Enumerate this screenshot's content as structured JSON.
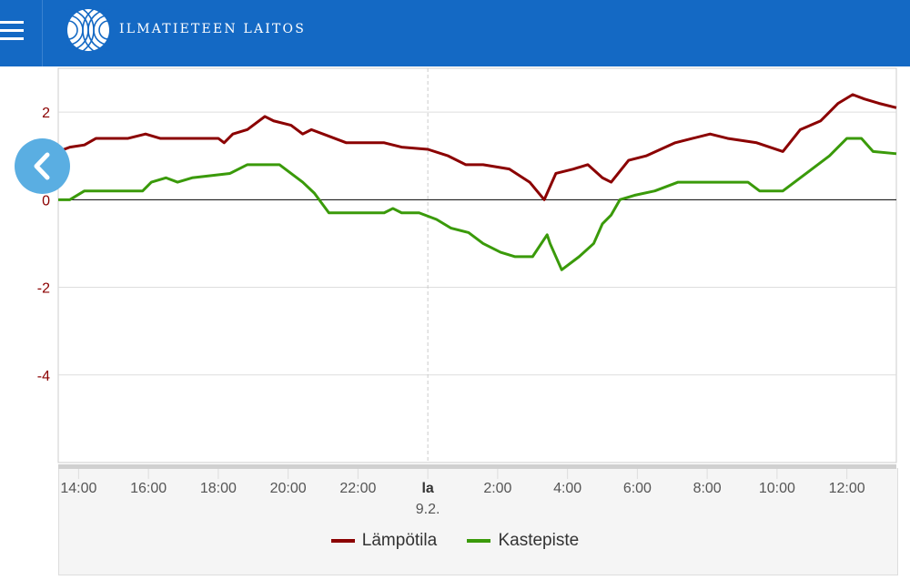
{
  "header": {
    "brand": "ILMATIETEEN LAITOS",
    "menu_icon": "hamburger-icon",
    "logo": "fmi-logo"
  },
  "back_button": {
    "icon": "chevron-left-icon",
    "color": "#5aaee2"
  },
  "colors": {
    "header": "#1469c4",
    "temperature": "#8b0000",
    "dewpoint": "#3a9a0a",
    "axis_label": "#8b0000"
  },
  "chart_data": {
    "type": "line",
    "xlim": [
      "8.2. 13:25",
      "9.2. 13:25"
    ],
    "ylim": [
      -6,
      3
    ],
    "grid": true,
    "legend_placement": "bottom",
    "x_ticks": [
      "14:00",
      "16:00",
      "18:00",
      "20:00",
      "22:00",
      "la",
      "2:00",
      "4:00",
      "6:00",
      "8:00",
      "10:00",
      "12:00"
    ],
    "x_tick_times": [
      "14:00",
      "16:00",
      "18:00",
      "20:00",
      "22:00",
      "0:00",
      "2:00",
      "4:00",
      "6:00",
      "8:00",
      "10:00",
      "12:00"
    ],
    "day_label": "9.2.",
    "y_ticks": [
      2,
      0,
      -2,
      -4
    ],
    "y_tick_labels": [
      "2",
      "0",
      "-2",
      "-4"
    ],
    "series": [
      {
        "name": "Lämpötila",
        "color": "#8b0000",
        "points": [
          [
            "13:25",
            1.1
          ],
          [
            "13:45",
            1.2
          ],
          [
            "14:10",
            1.25
          ],
          [
            "14:30",
            1.4
          ],
          [
            "14:55",
            1.4
          ],
          [
            "15:25",
            1.4
          ],
          [
            "15:55",
            1.5
          ],
          [
            "16:20",
            1.4
          ],
          [
            "18:00",
            1.4
          ],
          [
            "18:10",
            1.3
          ],
          [
            "18:25",
            1.5
          ],
          [
            "18:50",
            1.6
          ],
          [
            "19:20",
            1.9
          ],
          [
            "19:35",
            1.8
          ],
          [
            "20:05",
            1.7
          ],
          [
            "20:25",
            1.5
          ],
          [
            "20:40",
            1.6
          ],
          [
            "21:10",
            1.45
          ],
          [
            "21:40",
            1.3
          ],
          [
            "22:05",
            1.3
          ],
          [
            "22:45",
            1.3
          ],
          [
            "23:15",
            1.2
          ],
          [
            "0:00",
            1.15
          ],
          [
            "0:35",
            1.0
          ],
          [
            "1:05",
            0.8
          ],
          [
            "1:35",
            0.8
          ],
          [
            "2:20",
            0.7
          ],
          [
            "2:55",
            0.4
          ],
          [
            "3:20",
            0.0
          ],
          [
            "3:40",
            0.6
          ],
          [
            "4:10",
            0.7
          ],
          [
            "4:35",
            0.8
          ],
          [
            "5:00",
            0.5
          ],
          [
            "5:15",
            0.4
          ],
          [
            "5:45",
            0.9
          ],
          [
            "6:15",
            1.0
          ],
          [
            "7:05",
            1.3
          ],
          [
            "7:35",
            1.4
          ],
          [
            "8:05",
            1.5
          ],
          [
            "8:35",
            1.4
          ],
          [
            "9:25",
            1.3
          ],
          [
            "10:10",
            1.1
          ],
          [
            "10:40",
            1.6
          ],
          [
            "11:15",
            1.8
          ],
          [
            "11:45",
            2.2
          ],
          [
            "12:10",
            2.4
          ],
          [
            "12:30",
            2.3
          ],
          [
            "12:55",
            2.2
          ],
          [
            "13:25",
            2.1
          ]
        ]
      },
      {
        "name": "Kastepiste",
        "color": "#3a9a0a",
        "points": [
          [
            "13:25",
            0.0
          ],
          [
            "13:45",
            0.0
          ],
          [
            "14:10",
            0.2
          ],
          [
            "15:50",
            0.2
          ],
          [
            "16:05",
            0.4
          ],
          [
            "16:30",
            0.5
          ],
          [
            "16:50",
            0.4
          ],
          [
            "17:15",
            0.5
          ],
          [
            "18:20",
            0.6
          ],
          [
            "18:50",
            0.8
          ],
          [
            "19:45",
            0.8
          ],
          [
            "20:05",
            0.6
          ],
          [
            "20:25",
            0.4
          ],
          [
            "20:45",
            0.15
          ],
          [
            "21:10",
            -0.3
          ],
          [
            "22:45",
            -0.3
          ],
          [
            "23:00",
            -0.2
          ],
          [
            "23:15",
            -0.3
          ],
          [
            "23:45",
            -0.3
          ],
          [
            "0:15",
            -0.45
          ],
          [
            "0:40",
            -0.65
          ],
          [
            "1:10",
            -0.75
          ],
          [
            "1:35",
            -1.0
          ],
          [
            "2:05",
            -1.2
          ],
          [
            "2:30",
            -1.3
          ],
          [
            "3:00",
            -1.3
          ],
          [
            "3:25",
            -0.8
          ],
          [
            "3:30",
            -1.0
          ],
          [
            "3:50",
            -1.6
          ],
          [
            "4:20",
            -1.3
          ],
          [
            "4:45",
            -1.0
          ],
          [
            "5:00",
            -0.55
          ],
          [
            "5:15",
            -0.35
          ],
          [
            "5:30",
            0.0
          ],
          [
            "5:55",
            0.1
          ],
          [
            "6:30",
            0.2
          ],
          [
            "7:10",
            0.4
          ],
          [
            "9:10",
            0.4
          ],
          [
            "9:30",
            0.2
          ],
          [
            "10:10",
            0.2
          ],
          [
            "11:30",
            1.0
          ],
          [
            "12:00",
            1.4
          ],
          [
            "12:25",
            1.4
          ],
          [
            "12:45",
            1.1
          ],
          [
            "13:25",
            1.05
          ]
        ]
      }
    ]
  }
}
